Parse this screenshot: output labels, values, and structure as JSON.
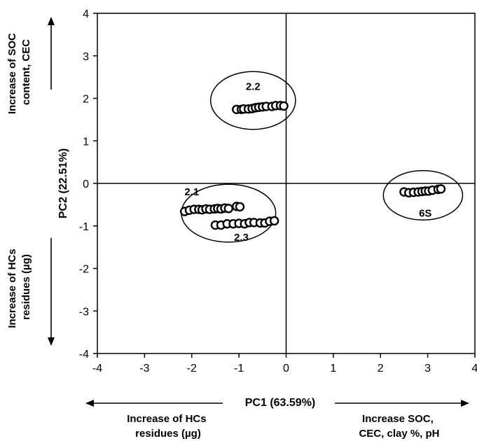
{
  "chart_data": {
    "type": "scatter",
    "title": "",
    "xlabel": "PC1 (63.59%)",
    "ylabel": "PC2 (22.51%)",
    "xlim": [
      -4,
      4
    ],
    "ylim": [
      -4,
      4
    ],
    "x_ticks": [
      "-4",
      "-3",
      "-2",
      "-1",
      "0",
      "1",
      "2",
      "3",
      "4"
    ],
    "y_ticks": [
      "4",
      "3",
      "2",
      "1",
      "0",
      "-1",
      "-2",
      "-3",
      "-4"
    ],
    "grid": false,
    "legend": "none",
    "marker": {
      "fill": "#ffffff",
      "stroke": "#000000"
    },
    "series": [
      {
        "x": [
          -2.15,
          -2.05,
          -1.95,
          -1.85,
          -1.78,
          -1.7,
          -1.62,
          -1.52,
          -1.45,
          -1.38,
          -1.3,
          -1.22,
          -1.05,
          -0.98
        ],
        "y": [
          -0.66,
          -0.63,
          -0.61,
          -0.61,
          -0.62,
          -0.6,
          -0.61,
          -0.6,
          -0.59,
          -0.6,
          -0.58,
          -0.59,
          -0.54,
          -0.55
        ]
      },
      {
        "x": [
          -1.05,
          -0.95,
          -0.9,
          -0.8,
          -0.72,
          -0.65,
          -0.58,
          -0.5,
          -0.42,
          -0.3,
          -0.22,
          -0.12,
          -0.05
        ],
        "y": [
          1.74,
          1.74,
          1.75,
          1.75,
          1.76,
          1.78,
          1.79,
          1.8,
          1.81,
          1.81,
          1.83,
          1.83,
          1.82
        ]
      },
      {
        "x": [
          -1.5,
          -1.38,
          -1.25,
          -1.12,
          -1.0,
          -0.88,
          -0.78,
          -0.68,
          -0.55,
          -0.45,
          -0.35,
          -0.25
        ],
        "y": [
          -0.98,
          -0.98,
          -0.95,
          -0.95,
          -0.94,
          -0.95,
          -0.92,
          -0.92,
          -0.93,
          -0.93,
          -0.89,
          -0.88
        ]
      },
      {
        "x": [
          2.5,
          2.6,
          2.7,
          2.8,
          2.88,
          2.95,
          3.02,
          3.1,
          3.22,
          3.28
        ],
        "y": [
          -0.2,
          -0.22,
          -0.21,
          -0.2,
          -0.19,
          -0.18,
          -0.18,
          -0.16,
          -0.14,
          -0.13
        ]
      }
    ],
    "annotations": [
      {
        "text": "2.1",
        "x": -2.0,
        "y": -0.28
      },
      {
        "text": "2.2",
        "x": -0.7,
        "y": 2.2
      },
      {
        "text": "2.3",
        "x": -0.95,
        "y": -1.35
      },
      {
        "text": "6S",
        "x": 2.95,
        "y": -0.78
      }
    ],
    "ellipses": [
      {
        "cx": -0.7,
        "cy": 1.95,
        "rx": 0.9,
        "ry": 0.68
      },
      {
        "cx": -1.22,
        "cy": -0.7,
        "rx": 1.0,
        "ry": 0.68
      },
      {
        "cx": 2.9,
        "cy": -0.28,
        "rx": 0.84,
        "ry": 0.58
      }
    ]
  },
  "arrow_annotations": {
    "left_top": [
      "Increase of SOC",
      "content, CEC"
    ],
    "left_bottom": [
      "Increase of HCs",
      "residues (µg)"
    ],
    "bottom_left": [
      "Increase of HCs",
      "residues (µg)"
    ],
    "bottom_right": [
      "Increase SOC,",
      "CEC, clay %, pH"
    ]
  }
}
